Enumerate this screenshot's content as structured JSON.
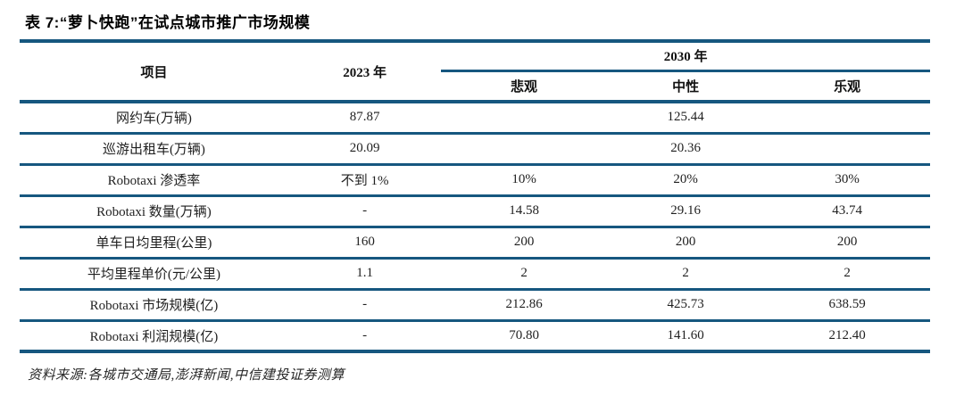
{
  "title": "表 7:“萝卜快跑”在试点城市推广市场规模",
  "table": {
    "header": {
      "item": "项目",
      "year_2023": "2023 年",
      "year_2030": "2030 年",
      "scenarios": [
        "悲观",
        "中性",
        "乐观"
      ]
    },
    "rows": [
      {
        "label": "网约车(万辆)",
        "v2023": "87.87",
        "pessimistic": "",
        "neutral": "125.44",
        "optimistic": ""
      },
      {
        "label": "巡游出租车(万辆)",
        "v2023": "20.09",
        "pessimistic": "",
        "neutral": "20.36",
        "optimistic": ""
      },
      {
        "label": "Robotaxi 渗透率",
        "v2023": "不到 1%",
        "pessimistic": "10%",
        "neutral": "20%",
        "optimistic": "30%"
      },
      {
        "label": "Robotaxi 数量(万辆)",
        "v2023": "-",
        "pessimistic": "14.58",
        "neutral": "29.16",
        "optimistic": "43.74"
      },
      {
        "label": "单车日均里程(公里)",
        "v2023": "160",
        "pessimistic": "200",
        "neutral": "200",
        "optimistic": "200"
      },
      {
        "label": "平均里程单价(元/公里)",
        "v2023": "1.1",
        "pessimistic": "2",
        "neutral": "2",
        "optimistic": "2"
      },
      {
        "label": "Robotaxi 市场规模(亿)",
        "v2023": "-",
        "pessimistic": "212.86",
        "neutral": "425.73",
        "optimistic": "638.59"
      },
      {
        "label": "Robotaxi 利润规模(亿)",
        "v2023": "-",
        "pessimistic": "70.80",
        "neutral": "141.60",
        "optimistic": "212.40"
      }
    ]
  },
  "source_note": "资料来源:各城市交通局,澎湃新闻,中信建投证券测算",
  "colors": {
    "table_line": "#16577f",
    "text": "#1f1f1f"
  }
}
